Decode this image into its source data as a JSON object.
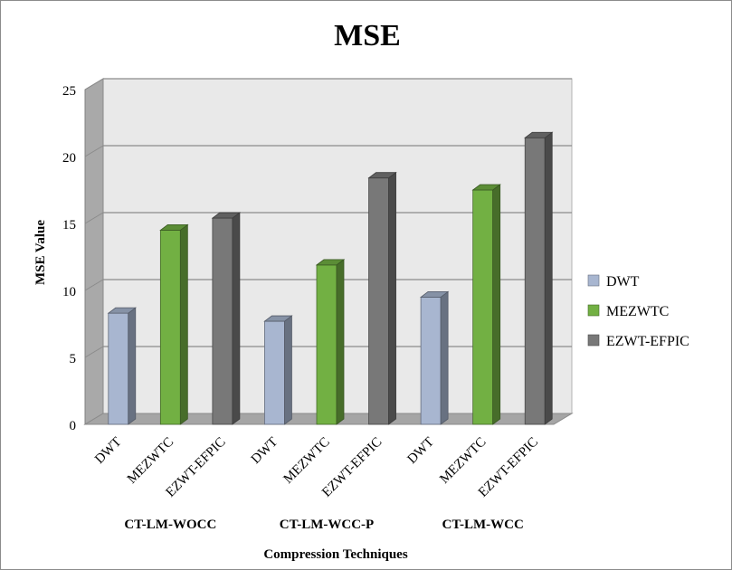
{
  "chart_data": {
    "type": "bar",
    "title": "MSE",
    "xlabel": "Compression Techniques",
    "ylabel": "MSE Value",
    "ylim": [
      0,
      25
    ],
    "yticks": [
      0,
      5,
      10,
      15,
      20,
      25
    ],
    "grid": true,
    "legend_position": "right",
    "groups": [
      {
        "label": "CT-LM-WOCC",
        "categories": [
          "DWT",
          "MEZWTC",
          "EZWT-EFPIC"
        ],
        "values": [
          8.3,
          14.5,
          15.4
        ]
      },
      {
        "label": "CT-LM-WCC-P",
        "categories": [
          "DWT",
          "MEZWTC",
          "EZWT-EFPIC"
        ],
        "values": [
          7.7,
          11.9,
          18.4
        ]
      },
      {
        "label": "CT-LM-WCC",
        "categories": [
          "DWT",
          "MEZWTC",
          "EZWT-EFPIC"
        ],
        "values": [
          9.5,
          17.5,
          21.4
        ]
      }
    ],
    "legend": [
      {
        "name": "DWT",
        "color": "#a8b6d0"
      },
      {
        "name": "MEZWTC",
        "color": "#72b043"
      },
      {
        "name": "EZWT-EFPIC",
        "color": "#787878"
      }
    ]
  }
}
